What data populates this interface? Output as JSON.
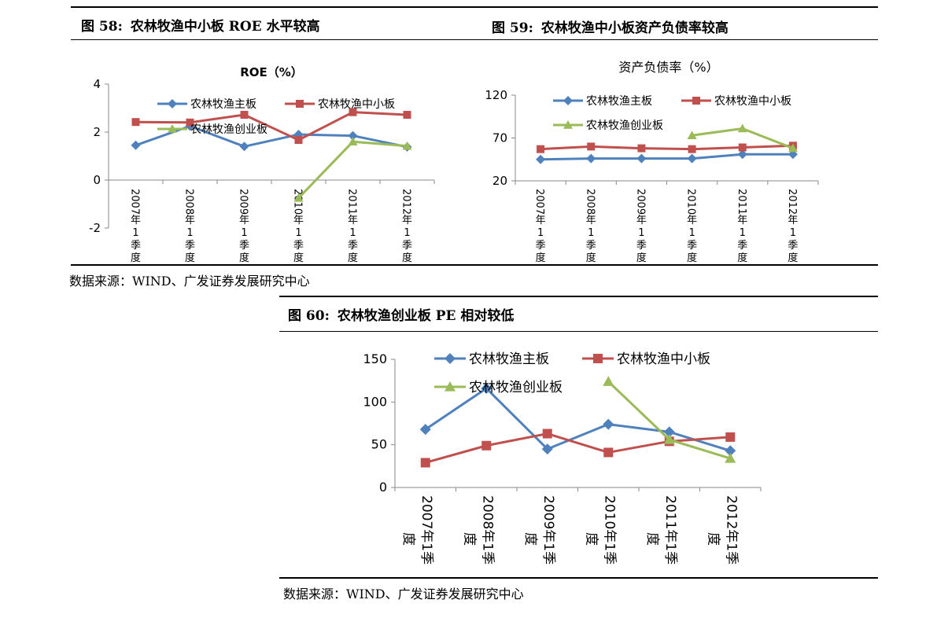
{
  "figures": [
    {
      "number": "图 58:",
      "title": "农林牧渔中小板 ROE 水平较高",
      "chart_data": {
        "type": "line",
        "title": "ROE（%）",
        "categories": [
          "2007年1季度",
          "2008年1季度",
          "2009年1季度",
          "2010年1季度",
          "2011年1季度",
          "2012年1季度"
        ],
        "ylim": [
          -2,
          4
        ],
        "yticks": [
          -2,
          0,
          2,
          4
        ],
        "series": [
          {
            "name": "农林牧渔主板",
            "color": "#4F81BD",
            "marker": "diamond",
            "values": [
              1.45,
              2.25,
              1.4,
              1.9,
              1.85,
              1.38
            ]
          },
          {
            "name": "农林牧渔中小板",
            "color": "#C0504D",
            "marker": "square",
            "values": [
              2.42,
              2.4,
              2.72,
              1.67,
              2.83,
              2.72
            ]
          },
          {
            "name": "农林牧渔创业板",
            "color": "#9BBB59",
            "marker": "triangle",
            "values": [
              null,
              null,
              null,
              -0.75,
              1.6,
              1.42
            ]
          }
        ],
        "legend": "top"
      }
    },
    {
      "number": "图 59:",
      "title": "农林牧渔中小板资产负债率较高",
      "chart_data": {
        "type": "line",
        "title": "资产负债率（%）",
        "categories": [
          "2007年1季度",
          "2008年1季度",
          "2009年1季度",
          "2010年1季度",
          "2011年1季度",
          "2012年1季度"
        ],
        "ylim": [
          20,
          120
        ],
        "yticks": [
          20,
          70,
          120
        ],
        "series": [
          {
            "name": "农林牧渔主板",
            "color": "#4F81BD",
            "marker": "diamond",
            "values": [
              45,
              46,
              46,
              46,
              51,
              51
            ]
          },
          {
            "name": "农林牧渔中小板",
            "color": "#C0504D",
            "marker": "square",
            "values": [
              57,
              60,
              58,
              57,
              59,
              61
            ]
          },
          {
            "name": "农林牧渔创业板",
            "color": "#9BBB59",
            "marker": "triangle",
            "values": [
              null,
              null,
              null,
              73,
              81,
              58
            ]
          }
        ],
        "legend": "top"
      }
    },
    {
      "number": "图 60:",
      "title": "农林牧渔创业板 PE 相对较低",
      "chart_data": {
        "type": "line",
        "title": "",
        "categories": [
          "2007年1季度",
          "2008年1季度",
          "2009年1季度",
          "2010年1季度",
          "2011年1季度",
          "2012年1季度"
        ],
        "ylim": [
          0,
          150
        ],
        "yticks": [
          0,
          50,
          100,
          150
        ],
        "series": [
          {
            "name": "农林牧渔主板",
            "color": "#4F81BD",
            "marker": "diamond",
            "values": [
              68,
              116,
              45,
              74,
              65,
              43
            ]
          },
          {
            "name": "农林牧渔中小板",
            "color": "#C0504D",
            "marker": "square",
            "values": [
              29,
              49,
              63,
              41,
              54,
              59
            ]
          },
          {
            "name": "农林牧渔创业板",
            "color": "#9BBB59",
            "marker": "triangle",
            "values": [
              null,
              null,
              null,
              124,
              56,
              34
            ]
          }
        ],
        "legend": "top"
      }
    }
  ],
  "source_top": "数据来源：WIND、广发证券发展研究中心",
  "source_bottom": "数据来源：WIND、广发证券发展研究中心"
}
